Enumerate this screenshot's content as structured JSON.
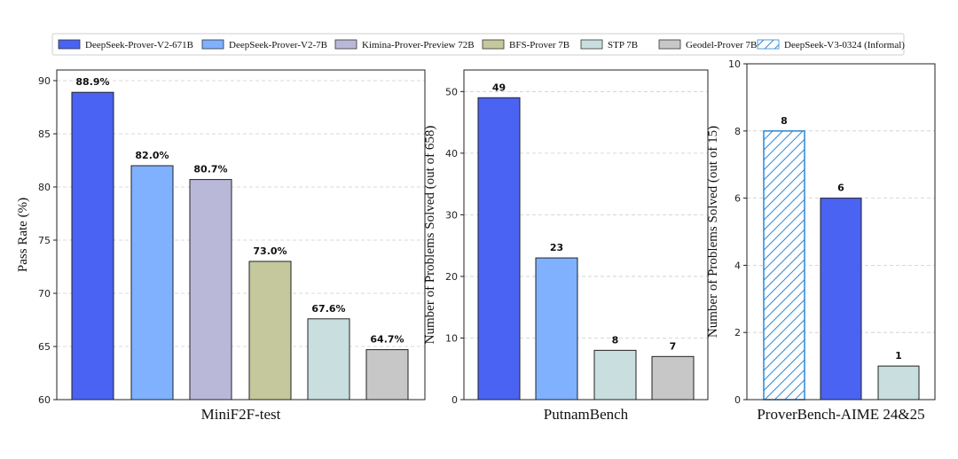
{
  "legend": [
    {
      "name": "DeepSeek-Prover-V2-671B",
      "color": "#4a63f2",
      "hatch": false
    },
    {
      "name": "DeepSeek-Prover-V2-7B",
      "color": "#7fb1ff",
      "hatch": false
    },
    {
      "name": "Kimina-Prover-Preview 72B",
      "color": "#b9b8d9",
      "hatch": false
    },
    {
      "name": "BFS-Prover 7B",
      "color": "#c4c89c",
      "hatch": false
    },
    {
      "name": "STP 7B",
      "color": "#c9dede",
      "hatch": false
    },
    {
      "name": "Geodel-Prover 7B",
      "color": "#c7c7c7",
      "hatch": false
    },
    {
      "name": "DeepSeek-V3-0324 (Informal)",
      "color": "#2a87d6",
      "hatch": true
    }
  ],
  "chart_data": [
    {
      "type": "bar",
      "title": "MiniF2F-test",
      "ylabel": "Pass Rate (%)",
      "ylim": [
        60,
        91
      ],
      "yticks": [
        60,
        65,
        70,
        75,
        80,
        85,
        90
      ],
      "grid": true,
      "categories": [
        "DeepSeek-Prover-V2-671B",
        "DeepSeek-Prover-V2-7B",
        "Kimina-Prover-Preview 72B",
        "BFS-Prover 7B",
        "STP 7B",
        "Geodel-Prover 7B"
      ],
      "values": [
        88.9,
        82.0,
        80.7,
        73.0,
        67.6,
        64.7
      ],
      "labels": [
        "88.9%",
        "82.0%",
        "80.7%",
        "73.0%",
        "67.6%",
        "64.7%"
      ]
    },
    {
      "type": "bar",
      "title": "PutnamBench",
      "ylabel": "Number of Problems Solved (out of 658)",
      "ylim": [
        0,
        53.5
      ],
      "yticks": [
        0,
        10,
        20,
        30,
        40,
        50
      ],
      "grid": true,
      "categories": [
        "DeepSeek-Prover-V2-671B",
        "DeepSeek-Prover-V2-7B",
        "STP 7B",
        "Geodel-Prover 7B"
      ],
      "values": [
        49,
        23,
        8,
        7
      ],
      "labels": [
        "49",
        "23",
        "8",
        "7"
      ]
    },
    {
      "type": "bar",
      "title": "ProverBench-AIME 24&25",
      "ylabel": "Number of Problems Solved (out of 15)",
      "ylim": [
        0,
        10
      ],
      "yticks": [
        0,
        2,
        4,
        6,
        8,
        10
      ],
      "grid": true,
      "categories": [
        "DeepSeek-V3-0324 (Informal)",
        "DeepSeek-Prover-V2-671B",
        "STP 7B"
      ],
      "values": [
        8,
        6,
        1
      ],
      "labels": [
        "8",
        "6",
        "1"
      ]
    }
  ]
}
